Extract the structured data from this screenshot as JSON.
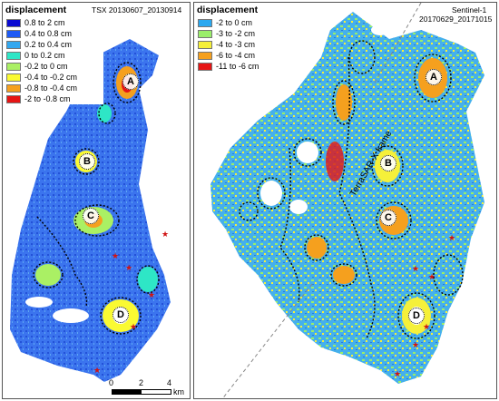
{
  "left_panel": {
    "header": "TSX 20130607_20130914",
    "legend": {
      "title": "displacement",
      "items": [
        {
          "label": "0.8 to 2 cm",
          "color": "#0a0ad2"
        },
        {
          "label": "0.4 to 0.8 cm",
          "color": "#1e5af5"
        },
        {
          "label": "0.2 to 0.4 cm",
          "color": "#33a8f0"
        },
        {
          "label": "0 to 0.2 cm",
          "color": "#2ee6c6"
        },
        {
          "label": "-0.2 to 0 cm",
          "color": "#aaf064"
        },
        {
          "label": "-0.4 to -0.2 cm",
          "color": "#fafa32"
        },
        {
          "label": "-0.8 to -0.4 cm",
          "color": "#f5a01e"
        },
        {
          "label": "-2 to -0.8 cm",
          "color": "#e61414"
        }
      ]
    },
    "site_labels": [
      "A",
      "B",
      "C",
      "D"
    ],
    "scale_bar": {
      "ticks": [
        "0",
        "2",
        "4"
      ],
      "unit": "km"
    }
  },
  "right_panel": {
    "header_line1": "Sentinel-1",
    "header_line2": "20170629_20171015",
    "legend": {
      "title": "displacement",
      "items": [
        {
          "label": "-2 to 0 cm",
          "color": "#2aa8f0"
        },
        {
          "label": "-3 to -2 cm",
          "color": "#9aee6a"
        },
        {
          "label": "-4 to -3 cm",
          "color": "#f5f03a"
        },
        {
          "label": "-6 to -4 cm",
          "color": "#f5a01e"
        },
        {
          "label": "-11 to -6 cm",
          "color": "#e61414"
        }
      ]
    },
    "site_labels": [
      "A",
      "B",
      "C",
      "D"
    ],
    "frame_label": "TerraSAR-X frame"
  }
}
